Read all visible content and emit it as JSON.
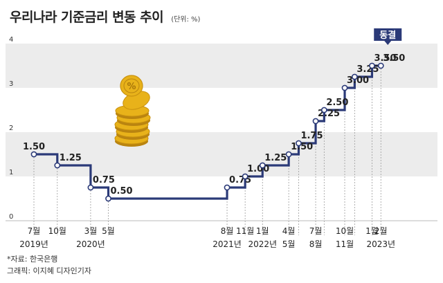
{
  "chart_data": {
    "type": "line",
    "step": true,
    "title": "우리나라 기준금리 변동 추이",
    "unit": "(단위: %)",
    "ylim": [
      0,
      4
    ],
    "yticks": [
      "0",
      "1",
      "2",
      "3",
      "4"
    ],
    "points": [
      {
        "x": 0,
        "value": 1.5,
        "label": "1.50"
      },
      {
        "x": 1.32,
        "value": 1.25,
        "label": "1.25"
      },
      {
        "x": 3.2,
        "value": 0.75,
        "label": "0.75"
      },
      {
        "x": 4.2,
        "value": 0.5,
        "label": "0.50"
      },
      {
        "x": 10.9,
        "value": 0.75,
        "label": "0.75"
      },
      {
        "x": 11.92,
        "value": 1.0,
        "label": "1.00"
      },
      {
        "x": 12.9,
        "value": 1.25,
        "label": "1.25"
      },
      {
        "x": 14.38,
        "value": 1.5,
        "label": "1.50"
      },
      {
        "x": 14.94,
        "value": 1.75,
        "label": "1.75"
      },
      {
        "x": 15.9,
        "value": 2.25,
        "label": "2.25"
      },
      {
        "x": 16.38,
        "value": 2.5,
        "label": "2.50"
      },
      {
        "x": 17.54,
        "value": 3.0,
        "label": "3.00"
      },
      {
        "x": 18.1,
        "value": 3.25,
        "label": "3.25"
      },
      {
        "x": 19.08,
        "value": 3.5,
        "label": "3.50"
      },
      {
        "x": 19.58,
        "value": 3.5,
        "label": "3.50"
      }
    ],
    "x_end": 20.6,
    "x_labels": [
      {
        "x": 0,
        "month": "7월",
        "year": "2019년"
      },
      {
        "x": 1.32,
        "month": "10월",
        "year": ""
      },
      {
        "x": 3.2,
        "month": "3월",
        "year": "2020년"
      },
      {
        "x": 4.2,
        "month": "5월",
        "year": ""
      },
      {
        "x": 10.9,
        "month": "8월",
        "year": "2021년"
      },
      {
        "x": 11.92,
        "month": "11월",
        "year": ""
      },
      {
        "x": 12.9,
        "month": "1월",
        "year": "2022년"
      },
      {
        "x": 14.38,
        "month": "4월",
        "year": "5월"
      },
      {
        "x": 15.9,
        "month": "7월",
        "year": "8월"
      },
      {
        "x": 17.54,
        "month": "10월",
        "year": "11월"
      },
      {
        "x": 19.08,
        "month": "1월",
        "year": ""
      },
      {
        "x": 19.58,
        "month": "2월",
        "year": "2023년"
      }
    ],
    "annotation": "동결"
  },
  "footer": {
    "source": "*자료: 한국은행",
    "credit": "그래픽: 이지혜 디자인기자"
  },
  "colors": {
    "line": "#2b3a78",
    "band": "#ececec",
    "annotation_bg": "#2b3a78",
    "coin": "#e8b21a"
  }
}
